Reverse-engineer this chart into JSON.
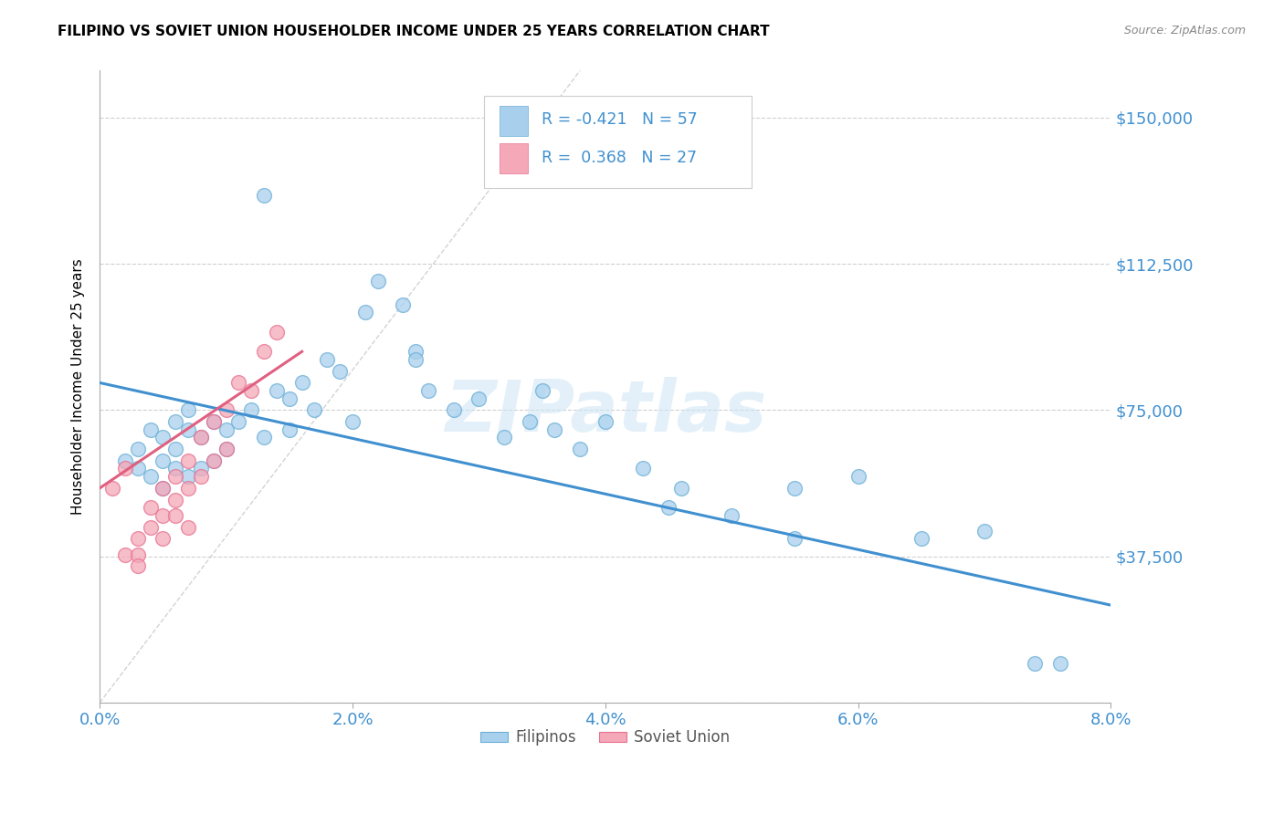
{
  "title": "FILIPINO VS SOVIET UNION HOUSEHOLDER INCOME UNDER 25 YEARS CORRELATION CHART",
  "source": "Source: ZipAtlas.com",
  "ylabel_label": "Householder Income Under 25 years",
  "xlim": [
    0.0,
    0.08
  ],
  "ylim": [
    0,
    162000
  ],
  "xtick_labels": [
    "0.0%",
    "2.0%",
    "4.0%",
    "6.0%",
    "8.0%"
  ],
  "xtick_values": [
    0.0,
    0.02,
    0.04,
    0.06,
    0.08
  ],
  "ytick_values": [
    0,
    37500,
    75000,
    112500,
    150000
  ],
  "ytick_labels": [
    "",
    "$37,500",
    "$75,000",
    "$112,500",
    "$150,000"
  ],
  "watermark": "ZIPatlas",
  "legend_blue_label": "Filipinos",
  "legend_pink_label": "Soviet Union",
  "blue_R": "-0.421",
  "blue_N": "57",
  "pink_R": "0.368",
  "pink_N": "27",
  "blue_color": "#a8d0ed",
  "pink_color": "#f4a8b8",
  "blue_edge_color": "#6baed6",
  "pink_edge_color": "#e87090",
  "blue_line_color": "#4090d0",
  "pink_line_color": "#e06080",
  "ref_line_color": "#c8c8c8",
  "blue_scatter_x": [
    0.002,
    0.003,
    0.003,
    0.004,
    0.004,
    0.005,
    0.005,
    0.005,
    0.006,
    0.006,
    0.006,
    0.007,
    0.007,
    0.007,
    0.008,
    0.008,
    0.009,
    0.009,
    0.01,
    0.01,
    0.011,
    0.012,
    0.013,
    0.014,
    0.015,
    0.015,
    0.016,
    0.017,
    0.018,
    0.019,
    0.02,
    0.021,
    0.022,
    0.024,
    0.025,
    0.026,
    0.028,
    0.03,
    0.032,
    0.034,
    0.036,
    0.038,
    0.04,
    0.043,
    0.046,
    0.05,
    0.055,
    0.06,
    0.065,
    0.07,
    0.013,
    0.025,
    0.035,
    0.045,
    0.055,
    0.074,
    0.076
  ],
  "blue_scatter_y": [
    62000,
    60000,
    65000,
    58000,
    70000,
    55000,
    62000,
    68000,
    60000,
    72000,
    65000,
    58000,
    70000,
    75000,
    60000,
    68000,
    62000,
    72000,
    65000,
    70000,
    72000,
    75000,
    68000,
    80000,
    70000,
    78000,
    82000,
    75000,
    88000,
    85000,
    72000,
    100000,
    108000,
    102000,
    90000,
    80000,
    75000,
    78000,
    68000,
    72000,
    70000,
    65000,
    72000,
    60000,
    55000,
    48000,
    55000,
    58000,
    42000,
    44000,
    130000,
    88000,
    80000,
    50000,
    42000,
    10000,
    10000
  ],
  "pink_scatter_x": [
    0.001,
    0.002,
    0.002,
    0.003,
    0.003,
    0.003,
    0.004,
    0.004,
    0.005,
    0.005,
    0.005,
    0.006,
    0.006,
    0.006,
    0.007,
    0.007,
    0.007,
    0.008,
    0.008,
    0.009,
    0.009,
    0.01,
    0.01,
    0.011,
    0.012,
    0.013,
    0.014
  ],
  "pink_scatter_y": [
    55000,
    60000,
    38000,
    42000,
    38000,
    35000,
    50000,
    45000,
    55000,
    48000,
    42000,
    58000,
    52000,
    48000,
    62000,
    55000,
    45000,
    68000,
    58000,
    72000,
    62000,
    75000,
    65000,
    82000,
    80000,
    90000,
    95000
  ],
  "background_color": "#ffffff",
  "grid_color": "#d0d0d0"
}
